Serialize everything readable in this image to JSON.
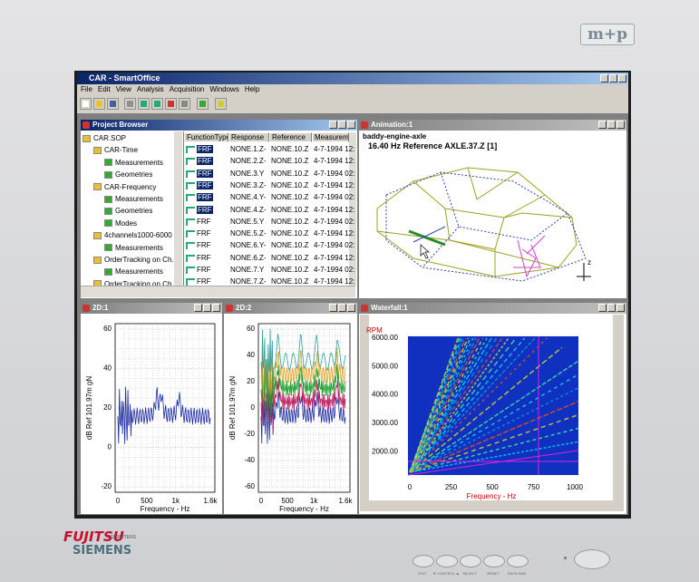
{
  "brand": "m+p",
  "app": {
    "title": "CAR - SmartOffice",
    "menu": [
      "File",
      "Edit",
      "View",
      "Analysis",
      "Acquisition",
      "Windows",
      "Help"
    ]
  },
  "project_browser": {
    "title": "Project Browser",
    "tree": {
      "label": "CAR.SOP",
      "children": [
        {
          "label": "CAR-Time",
          "children": [
            {
              "label": "Measurements"
            },
            {
              "label": "Geometries"
            }
          ]
        },
        {
          "label": "CAR-Frequency",
          "children": [
            {
              "label": "Measurements"
            },
            {
              "label": "Geometries"
            },
            {
              "label": "Modes"
            }
          ]
        },
        {
          "label": "4channels1000-6000",
          "children": [
            {
              "label": "Measurements"
            }
          ]
        },
        {
          "label": "OrderTracking on Ch...",
          "children": [
            {
              "label": "Measurements"
            }
          ]
        },
        {
          "label": "OrderTracking on Ch..."
        }
      ]
    },
    "columns": [
      "FunctionType",
      "Response",
      "Reference",
      "Measuremen"
    ],
    "rows": [
      [
        "FRF",
        "NONE.1.Z-",
        "NONE.10.Z",
        "4-7-1994 12:"
      ],
      [
        "FRF",
        "NONE.2.Z-",
        "NONE.10.Z",
        "4-7-1994 12:"
      ],
      [
        "FRF",
        "NONE.3.Y",
        "NONE.10.Z",
        "4-7-1994 02:"
      ],
      [
        "FRF",
        "NONE.3.Z-",
        "NONE.10.Z",
        "4-7-1994 12:"
      ],
      [
        "FRF",
        "NONE.4.Y-",
        "NONE.10.Z",
        "4-7-1994 02:"
      ],
      [
        "FRF",
        "NONE.4.Z-",
        "NONE.10.Z",
        "4-7-1994 12:"
      ],
      [
        "FRF",
        "NONE.5.Y",
        "NONE.10.Z",
        "4-7-1994 02:"
      ],
      [
        "FRF",
        "NONE.5.Z-",
        "NONE.10.Z",
        "4-7-1994 12:"
      ],
      [
        "FRF",
        "NONE.6.Y-",
        "NONE.10.Z",
        "4-7-1994 02:"
      ],
      [
        "FRF",
        "NONE.6.Z-",
        "NONE.10.Z",
        "4-7-1994 12:"
      ],
      [
        "FRF",
        "NONE.7.Y",
        "NONE.10.Z",
        "4-7-1994 02:"
      ],
      [
        "FRF",
        "NONE.7.Z-",
        "NONE.10.Z",
        "4-7-1994 12:"
      ]
    ]
  },
  "animation": {
    "title": "Animation:1",
    "name": "baddy-engine-axle",
    "info": "16.40 Hz Reference AXLE.37.Z [1]",
    "axis": "z"
  },
  "plot1": {
    "title": "2D:1",
    "ylabel": "dB Ref 101.97m gN",
    "xlabel": "Frequency - Hz",
    "yticks": [
      "60",
      "40",
      "20",
      "0",
      "-20"
    ],
    "xticks": [
      "0",
      "500",
      "1k",
      "1.6k"
    ]
  },
  "plot2": {
    "title": "2D:2",
    "ylabel": "dB Ref 101.97m gN",
    "xlabel": "Frequency - Hz",
    "yticks": [
      "60",
      "40",
      "20",
      "0",
      "-20",
      "-40",
      "-60"
    ],
    "xticks": [
      "0",
      "500",
      "1k",
      "1.6k"
    ]
  },
  "waterfall": {
    "title": "Waterfall:1",
    "ylabel": "RPM",
    "yticks": [
      "6000.00",
      "5000.00",
      "4000.00",
      "3000.00",
      "2000.00"
    ],
    "xticks": [
      "0",
      "250",
      "500",
      "750",
      "1000"
    ],
    "xlabel": "Frequency - Hz"
  },
  "bezel": {
    "maker": "FUJITSU",
    "sub": "COMPUTERS",
    "brand": "SIEMENS",
    "buttons": [
      "EXIT",
      "▼ CONTROL ▲",
      "SELECT",
      "RESET",
      "DVI/D-SUB"
    ]
  }
}
